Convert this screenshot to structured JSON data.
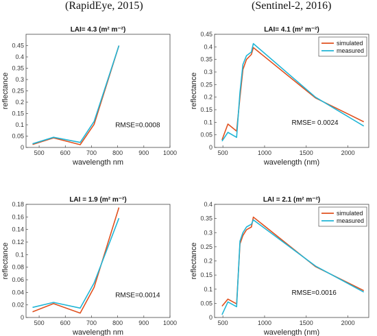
{
  "headers": {
    "left": "(RapidEye, 2015)",
    "right": "(Sentinel-2, 2016)"
  },
  "colors": {
    "simulated": "#e0501e",
    "measured": "#1fb5d6",
    "axis": "#444444"
  },
  "chart_data": [
    {
      "type": "line",
      "title": "LAI= 4.3 (m² m⁻²)",
      "xlabel": "wavelength  nm",
      "ylabel": "reflectance",
      "xlim": [
        450,
        1000
      ],
      "ylim": [
        0,
        0.5
      ],
      "xticks": [
        500,
        600,
        700,
        800,
        900,
        1000
      ],
      "yticks": [
        0,
        0.05,
        0.1,
        0.15,
        0.2,
        0.25,
        0.3,
        0.35,
        0.4,
        0.45
      ],
      "annotation": "RMSE=0.0008",
      "legend": [],
      "series": [
        {
          "name": "simulated",
          "x": [
            475,
            555,
            657,
            710,
            805
          ],
          "y": [
            0.013,
            0.042,
            0.012,
            0.102,
            0.45
          ]
        },
        {
          "name": "measured",
          "x": [
            475,
            555,
            657,
            710,
            805
          ],
          "y": [
            0.016,
            0.045,
            0.022,
            0.115,
            0.45
          ]
        }
      ]
    },
    {
      "type": "line",
      "title": "LAI= 4.1 (m² m⁻²)",
      "xlabel": "wavelength (nm)",
      "ylabel": "reflectance",
      "xlim": [
        400,
        2250
      ],
      "ylim": [
        0,
        0.45
      ],
      "xticks": [
        500,
        1000,
        1500,
        2000
      ],
      "yticks": [
        0,
        0.05,
        0.1,
        0.15,
        0.2,
        0.25,
        0.3,
        0.35,
        0.4,
        0.45
      ],
      "annotation": "RMSE= 0.0024",
      "legend": [
        "simulated",
        "measured"
      ],
      "series": [
        {
          "name": "simulated",
          "x": [
            490,
            560,
            665,
            705,
            740,
            783,
            842,
            865,
            1610,
            2190
          ],
          "y": [
            0.03,
            0.093,
            0.065,
            0.2,
            0.31,
            0.35,
            0.37,
            0.397,
            0.197,
            0.102
          ]
        },
        {
          "name": "measured",
          "x": [
            490,
            560,
            665,
            705,
            740,
            783,
            842,
            865,
            1610,
            2190
          ],
          "y": [
            0.025,
            0.06,
            0.04,
            0.22,
            0.33,
            0.365,
            0.38,
            0.413,
            0.2,
            0.085
          ]
        }
      ]
    },
    {
      "type": "line",
      "title": "LAI = 1.9 (m² m⁻²)",
      "xlabel": "wavelength  nm",
      "ylabel": "reflectance",
      "xlim": [
        450,
        1000
      ],
      "ylim": [
        0,
        0.18
      ],
      "xticks": [
        500,
        600,
        700,
        800,
        900,
        1000
      ],
      "yticks": [
        0,
        0.02,
        0.04,
        0.06,
        0.08,
        0.1,
        0.12,
        0.14,
        0.16,
        0.18
      ],
      "annotation": "RMSE=0.0014",
      "legend": [],
      "series": [
        {
          "name": "simulated",
          "x": [
            475,
            555,
            657,
            710,
            805
          ],
          "y": [
            0.009,
            0.022,
            0.007,
            0.048,
            0.175
          ]
        },
        {
          "name": "measured",
          "x": [
            475,
            555,
            657,
            710,
            805
          ],
          "y": [
            0.016,
            0.024,
            0.015,
            0.055,
            0.158
          ]
        }
      ]
    },
    {
      "type": "line",
      "title": "LAI = 2.1 (m² m⁻²)",
      "xlabel": "wavelength (nm)",
      "ylabel": "reflectance",
      "xlim": [
        400,
        2250
      ],
      "ylim": [
        0,
        0.4
      ],
      "xticks": [
        500,
        1000,
        1500,
        2000
      ],
      "yticks": [
        0,
        0.05,
        0.1,
        0.15,
        0.2,
        0.25,
        0.3,
        0.35,
        0.4
      ],
      "annotation": "RMSE=0.0016",
      "legend": [
        "simulated",
        "measured"
      ],
      "series": [
        {
          "name": "simulated",
          "x": [
            490,
            560,
            665,
            705,
            740,
            783,
            842,
            865,
            1610,
            2190
          ],
          "y": [
            0.04,
            0.065,
            0.048,
            0.26,
            0.29,
            0.31,
            0.32,
            0.355,
            0.18,
            0.095
          ]
        },
        {
          "name": "measured",
          "x": [
            490,
            560,
            665,
            705,
            740,
            783,
            842,
            865,
            1610,
            2190
          ],
          "y": [
            0.01,
            0.055,
            0.038,
            0.27,
            0.3,
            0.32,
            0.33,
            0.345,
            0.182,
            0.09
          ]
        }
      ]
    }
  ]
}
